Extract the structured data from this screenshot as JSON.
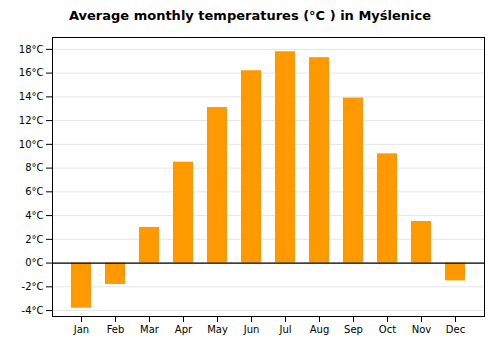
{
  "chart_data": {
    "type": "bar",
    "title": "Average monthly temperatures (°C ) in Myślenice",
    "categories": [
      "Jan",
      "Feb",
      "Mar",
      "Apr",
      "May",
      "Jun",
      "Jul",
      "Aug",
      "Sep",
      "Oct",
      "Nov",
      "Dec"
    ],
    "values": [
      -3.8,
      -1.8,
      3.0,
      8.5,
      13.1,
      16.2,
      17.8,
      17.3,
      13.9,
      9.2,
      3.5,
      -1.5
    ],
    "color": "#FF9900",
    "ylim": [
      -4.5,
      19.0
    ],
    "yticks": [
      {
        "value": -4,
        "label": "-4°C"
      },
      {
        "value": -2,
        "label": "-2°C"
      },
      {
        "value": 0,
        "label": "0°C"
      },
      {
        "value": 2,
        "label": "2°C"
      },
      {
        "value": 4,
        "label": "4°C"
      },
      {
        "value": 6,
        "label": "6°C"
      },
      {
        "value": 8,
        "label": "8°C"
      },
      {
        "value": 10,
        "label": "10°C"
      },
      {
        "value": 12,
        "label": "12°C"
      },
      {
        "value": 14,
        "label": "14°C"
      },
      {
        "value": 16,
        "label": "16°C"
      },
      {
        "value": 18,
        "label": "18°C"
      }
    ],
    "grid": true
  }
}
